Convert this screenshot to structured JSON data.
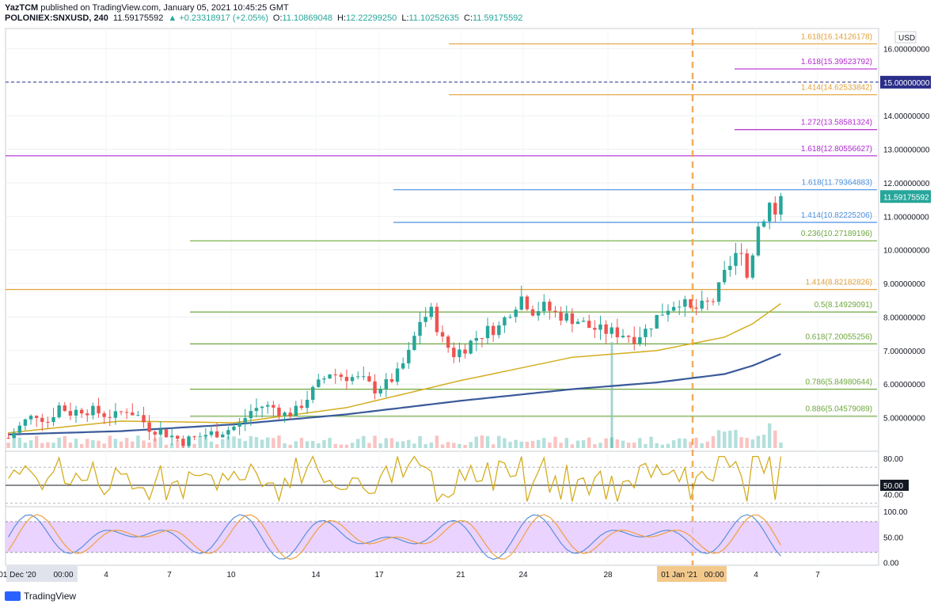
{
  "header": {
    "publisher": "YazTCM",
    "published_line": " published on TradingView.com, January 05, 2021 10:45:25 GMT",
    "symbol_line": "POLONIEX:SNXUSD, 240",
    "last": "11.59175592",
    "change": "▲ +0.23318917 (+2.05%)",
    "o_label": "O:",
    "o": "11.10869048",
    "h_label": "H:",
    "h": "12.22299250",
    "l_label": "L:",
    "l": "11.10252635",
    "c_label": "C:",
    "c": "11.59175592"
  },
  "footer": {
    "brand": "TradingView"
  },
  "colors": {
    "up": "#26a69a",
    "down": "#ef5350",
    "ma_fast": "#d4ad1f",
    "ma_slow": "#3a5a9a",
    "fib_orange": "#e0a13a",
    "fib_purple": "#b32ad1",
    "fib_blue": "#4c8fe0",
    "fib_green": "#6ea73e",
    "rsi": "#d4ad1f",
    "stoch_k": "#5b8fd8",
    "stoch_d": "#f0a040",
    "stoch_band": "#e5c8ff"
  },
  "chart_data": [
    {
      "type": "candlestick",
      "symbol": "POLONIEX:SNXUSD",
      "interval": "240",
      "currency": "USD",
      "y_axis_labels": [
        "16.00000000",
        "15.00000000",
        "14.00000000",
        "13.00000000",
        "12.00000000",
        "11.00000000",
        "10.00000000",
        "9.00000000",
        "8.00000000",
        "7.00000000",
        "6.00000000",
        "5.00000000"
      ],
      "ylim": [
        4.0,
        16.6
      ],
      "x_axis_labels": [
        "01 Dec '20",
        "00:00",
        "4",
        "7",
        "10",
        "14",
        "17",
        "21",
        "24",
        "28",
        "01 Jan '21",
        "00:00",
        "4",
        "7"
      ],
      "price_tag": "11.59175592",
      "horizontal_level_tag": "15.00000000",
      "horizontal_level": 15.0,
      "fib_levels": [
        {
          "label": "1.618(16.14126178)",
          "value": 16.14126178,
          "color": "orange"
        },
        {
          "label": "1.618(15.39523792)",
          "value": 15.39523792,
          "color": "purple"
        },
        {
          "label": "1.414(14.62533842)",
          "value": 14.62533842,
          "color": "orange"
        },
        {
          "label": "1.272(13.58581324)",
          "value": 13.58581324,
          "color": "purple"
        },
        {
          "label": "1.618(12.80556627)",
          "value": 12.80556627,
          "color": "purple"
        },
        {
          "label": "1.618(11.79364883)",
          "value": 11.79364883,
          "color": "blue"
        },
        {
          "label": "1.414(10.82225206)",
          "value": 10.82225206,
          "color": "blue"
        },
        {
          "label": "0.236(10.27189196)",
          "value": 10.27189196,
          "color": "green"
        },
        {
          "label": "1.414(8.82182826)",
          "value": 8.82182826,
          "color": "orange"
        },
        {
          "label": "0.5(8.14929091)",
          "value": 8.14929091,
          "color": "green"
        },
        {
          "label": "0.618(7.20055256)",
          "value": 7.20055256,
          "color": "green"
        },
        {
          "label": "0.786(5.84980644)",
          "value": 5.84980644,
          "color": "green"
        },
        {
          "label": "0.886(5.04579089)",
          "value": 5.04579089,
          "color": "green"
        }
      ],
      "close_path": [
        [
          0,
          4.4
        ],
        [
          3,
          4.9
        ],
        [
          5,
          5.1
        ],
        [
          7,
          4.9
        ],
        [
          9,
          5.35
        ],
        [
          11,
          5.15
        ],
        [
          13,
          5.25
        ],
        [
          15,
          5.2
        ],
        [
          17,
          5.1
        ],
        [
          19,
          5.05
        ],
        [
          21,
          5.25
        ],
        [
          23,
          5.05
        ],
        [
          25,
          4.7
        ],
        [
          27,
          4.6
        ],
        [
          29,
          4.45
        ],
        [
          31,
          4.3
        ],
        [
          33,
          4.4
        ],
        [
          35,
          4.5
        ],
        [
          37,
          4.55
        ],
        [
          39,
          4.65
        ],
        [
          41,
          4.8
        ],
        [
          43,
          5.2
        ],
        [
          45,
          5.35
        ],
        [
          47,
          5.3
        ],
        [
          49,
          5.1
        ],
        [
          51,
          5.2
        ],
        [
          53,
          5.6
        ],
        [
          55,
          6.0
        ],
        [
          57,
          6.35
        ],
        [
          59,
          6.25
        ],
        [
          61,
          6.2
        ],
        [
          63,
          6.1
        ],
        [
          65,
          5.85
        ],
        [
          67,
          6.0
        ],
        [
          69,
          6.3
        ],
        [
          71,
          6.9
        ],
        [
          73,
          7.9
        ],
        [
          75,
          8.15
        ],
        [
          77,
          7.3
        ],
        [
          79,
          6.9
        ],
        [
          81,
          7.1
        ],
        [
          83,
          7.4
        ],
        [
          85,
          7.6
        ],
        [
          87,
          7.7
        ],
        [
          89,
          8.2
        ],
        [
          91,
          8.6
        ],
        [
          93,
          8.2
        ],
        [
          95,
          8.3
        ],
        [
          97,
          8.1
        ],
        [
          99,
          8.0
        ],
        [
          101,
          7.9
        ],
        [
          103,
          7.7
        ],
        [
          105,
          7.6
        ],
        [
          107,
          7.55
        ],
        [
          109,
          7.5
        ],
        [
          111,
          7.4
        ],
        [
          113,
          7.6
        ],
        [
          115,
          8.0
        ],
        [
          117,
          8.3
        ],
        [
          119,
          8.5
        ],
        [
          121,
          8.2
        ],
        [
          123,
          8.3
        ],
        [
          125,
          8.5
        ],
        [
          127,
          9.2
        ],
        [
          129,
          9.8
        ],
        [
          130,
          10.1
        ],
        [
          131,
          9.2
        ],
        [
          133,
          10.7
        ],
        [
          135,
          11.4
        ],
        [
          136,
          11.1
        ],
        [
          137,
          11.59
        ]
      ],
      "ma_fast": [
        [
          0,
          4.55
        ],
        [
          20,
          4.9
        ],
        [
          40,
          4.85
        ],
        [
          60,
          5.3
        ],
        [
          80,
          6.1
        ],
        [
          100,
          6.8
        ],
        [
          115,
          7.0
        ],
        [
          127,
          7.4
        ],
        [
          132,
          7.8
        ],
        [
          137,
          8.4
        ]
      ],
      "ma_slow": [
        [
          0,
          4.5
        ],
        [
          20,
          4.6
        ],
        [
          40,
          4.8
        ],
        [
          60,
          5.1
        ],
        [
          80,
          5.5
        ],
        [
          100,
          5.85
        ],
        [
          115,
          6.05
        ],
        [
          127,
          6.3
        ],
        [
          132,
          6.55
        ],
        [
          137,
          6.9
        ]
      ],
      "event_marker": {
        "label": "01 Jan '21",
        "time": "00:00",
        "position": "vertical dashed line"
      }
    },
    {
      "type": "line",
      "name": "RSI",
      "y_axis_labels": [
        "80.00",
        "50.00",
        "40.00"
      ],
      "ylim": [
        28,
        86
      ],
      "levels": [
        70,
        50,
        30
      ],
      "value_tag": "50.00"
    },
    {
      "type": "line",
      "name": "Stochastic RSI",
      "y_axis_labels": [
        "100.00",
        "50.00",
        "0.00"
      ],
      "ylim": [
        -2,
        106
      ],
      "band": [
        20,
        80
      ]
    }
  ]
}
